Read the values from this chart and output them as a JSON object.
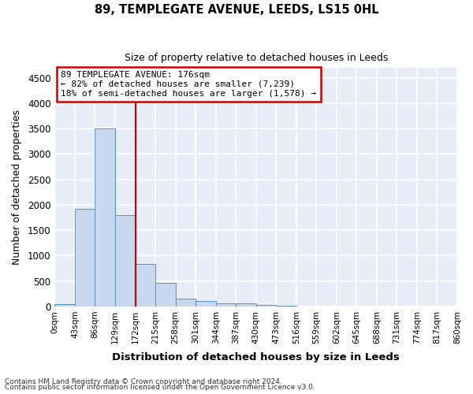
{
  "title1": "89, TEMPLEGATE AVENUE, LEEDS, LS15 0HL",
  "title2": "Size of property relative to detached houses in Leeds",
  "xlabel": "Distribution of detached houses by size in Leeds",
  "ylabel": "Number of detached properties",
  "bin_edges": [
    0,
    43,
    86,
    129,
    172,
    215,
    258,
    301,
    344,
    387,
    430,
    473,
    516,
    559,
    602,
    645,
    688,
    731,
    774,
    817,
    860
  ],
  "bin_labels": [
    "0sqm",
    "43sqm",
    "86sqm",
    "129sqm",
    "172sqm",
    "215sqm",
    "258sqm",
    "301sqm",
    "344sqm",
    "387sqm",
    "430sqm",
    "473sqm",
    "516sqm",
    "559sqm",
    "602sqm",
    "645sqm",
    "688sqm",
    "731sqm",
    "774sqm",
    "817sqm",
    "860sqm"
  ],
  "counts": [
    50,
    1920,
    3500,
    1800,
    840,
    460,
    160,
    100,
    65,
    55,
    30,
    20,
    0,
    0,
    0,
    0,
    0,
    0,
    0,
    0
  ],
  "bar_color": "#c9d9ed",
  "bar_edge_color": "#5b8fc9",
  "vline_x": 172,
  "vline_color": "#cc0000",
  "annotation_text": "89 TEMPLEGATE AVENUE: 176sqm\n← 82% of detached houses are smaller (7,239)\n18% of semi-detached houses are larger (1,578) →",
  "annotation_box_color": "#cc0000",
  "annotation_text_color": "#000000",
  "ylim": [
    0,
    4700
  ],
  "yticks": [
    0,
    500,
    1000,
    1500,
    2000,
    2500,
    3000,
    3500,
    4000,
    4500
  ],
  "axes_bg_color": "#e8eef7",
  "figure_bg_color": "#ffffff",
  "grid_color": "#ffffff",
  "footer1": "Contains HM Land Registry data © Crown copyright and database right 2024.",
  "footer2": "Contains public sector information licensed under the Open Government Licence v3.0."
}
